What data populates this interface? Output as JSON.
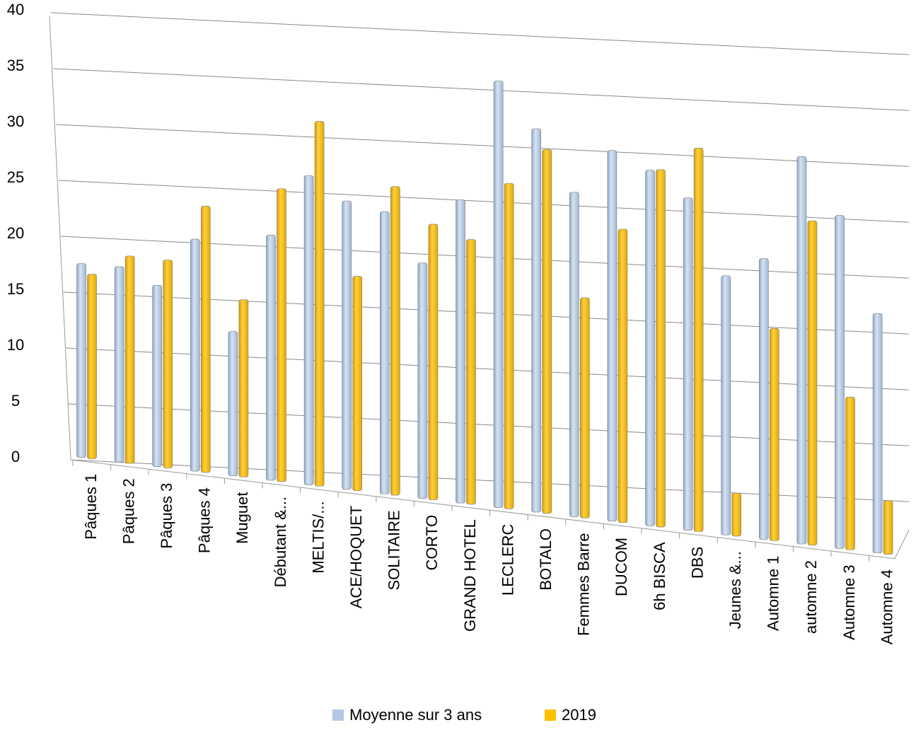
{
  "chart_data": {
    "type": "bar",
    "categories": [
      "Pâques 1",
      "Pâques 2",
      "Pâques 3",
      "Pâques 4",
      "Muguet",
      "Débutant &...",
      "MELTIS/...",
      "ACE/HOQUET",
      "SOLITAIRE",
      "CORTO",
      "GRAND HOTEL",
      "LECLERC",
      "BOTALO",
      "Femmes Barre",
      "DUCOM",
      "6h BISCA",
      "DBS",
      "Jeunes &...",
      "Automne 1",
      "automne 2",
      "Automne 3",
      "Automne 4"
    ],
    "series": [
      {
        "name": "Moyenne sur 3 ans",
        "color": "#b4c7e7",
        "values": [
          17.6,
          17.5,
          16,
          20.3,
          12.2,
          21,
          26.5,
          24.4,
          23.6,
          19.2,
          25,
          35.8,
          31.7,
          26.2,
          30.1,
          28.5,
          26.2,
          19.4,
          21.1,
          30.4,
          25.3,
          16.7
        ]
      },
      {
        "name": "2019",
        "color": "#ffc000",
        "values": [
          16.7,
          18.5,
          18.3,
          23.3,
          15.1,
          25.2,
          31.4,
          17.7,
          25.9,
          22.7,
          21.5,
          26.7,
          29.9,
          16.8,
          23.1,
          28.6,
          30.7,
          0,
          14.9,
          24.7,
          9.1,
          0
        ]
      }
    ],
    "ylim": [
      0,
      40
    ],
    "yticks": [
      0,
      5,
      10,
      15,
      20,
      25,
      30,
      35,
      40
    ],
    "grid": true
  }
}
